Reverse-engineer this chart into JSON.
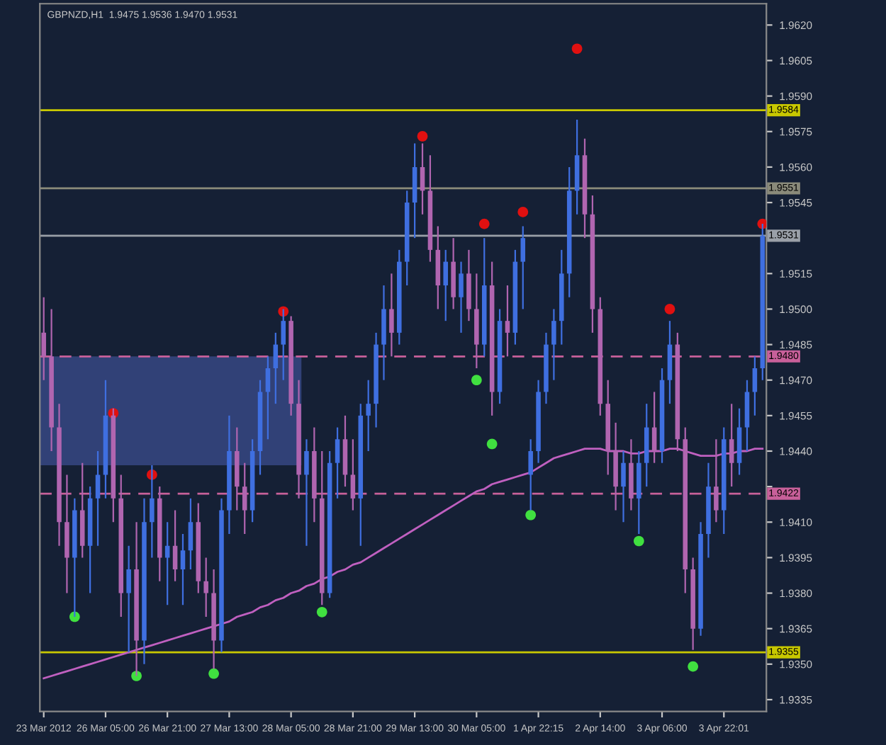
{
  "chart_data": {
    "type": "candlestick",
    "title": "GBPNZD,H1  1.9475 1.9536 1.9470 1.9531",
    "categories": [
      "23 Mar 2012",
      null,
      null,
      null,
      null,
      null,
      null,
      null,
      "26 Mar 05:00",
      null,
      null,
      null,
      null,
      null,
      null,
      null,
      "26 Mar 21:00",
      null,
      null,
      null,
      null,
      null,
      null,
      null,
      "27 Mar 13:00",
      null,
      null,
      null,
      null,
      null,
      null,
      null,
      "28 Mar 05:00",
      null,
      null,
      null,
      null,
      null,
      null,
      null,
      "28 Mar 21:00",
      null,
      null,
      null,
      null,
      null,
      null,
      null,
      "29 Mar 13:00",
      null,
      null,
      null,
      null,
      null,
      null,
      null,
      "30 Mar 05:00",
      null,
      null,
      null,
      null,
      null,
      null,
      null,
      "1 Apr 22:15",
      null,
      null,
      null,
      null,
      null,
      null,
      null,
      "2 Apr 14:00",
      null,
      null,
      null,
      null,
      null,
      null,
      null,
      "3 Apr 06:00",
      null,
      null,
      null,
      null,
      null,
      null,
      null,
      "3 Apr 22:01",
      null,
      null,
      null,
      null,
      null
    ],
    "ohlc": [
      [
        1.949,
        1.9505,
        1.947,
        1.948
      ],
      [
        1.948,
        1.95,
        1.944,
        1.945
      ],
      [
        1.945,
        1.946,
        1.94,
        1.941
      ],
      [
        1.941,
        1.943,
        1.938,
        1.9395
      ],
      [
        1.9395,
        1.942,
        1.937,
        1.9415
      ],
      [
        1.9415,
        1.9435,
        1.9395,
        1.94
      ],
      [
        1.94,
        1.9425,
        1.938,
        1.942
      ],
      [
        1.942,
        1.944,
        1.94,
        1.943
      ],
      [
        1.943,
        1.947,
        1.942,
        1.9455
      ],
      [
        1.9455,
        1.9458,
        1.941,
        1.942
      ],
      [
        1.942,
        1.943,
        1.937,
        1.938
      ],
      [
        1.938,
        1.94,
        1.9355,
        1.939
      ],
      [
        1.939,
        1.941,
        1.9345,
        1.936
      ],
      [
        1.936,
        1.942,
        1.935,
        1.941
      ],
      [
        1.941,
        1.9434,
        1.9395,
        1.942
      ],
      [
        1.942,
        1.9425,
        1.9385,
        1.9395
      ],
      [
        1.9395,
        1.941,
        1.9375,
        1.94
      ],
      [
        1.94,
        1.9415,
        1.9385,
        1.939
      ],
      [
        1.939,
        1.9405,
        1.9375,
        1.9398
      ],
      [
        1.9398,
        1.942,
        1.939,
        1.941
      ],
      [
        1.941,
        1.9418,
        1.938,
        1.9385
      ],
      [
        1.9385,
        1.9395,
        1.937,
        1.938
      ],
      [
        1.938,
        1.939,
        1.9348,
        1.936
      ],
      [
        1.936,
        1.942,
        1.9355,
        1.9415
      ],
      [
        1.9415,
        1.9455,
        1.9405,
        1.944
      ],
      [
        1.944,
        1.945,
        1.9415,
        1.9425
      ],
      [
        1.9425,
        1.9435,
        1.9405,
        1.9415
      ],
      [
        1.9415,
        1.9445,
        1.941,
        1.944
      ],
      [
        1.944,
        1.947,
        1.943,
        1.9465
      ],
      [
        1.9465,
        1.948,
        1.9445,
        1.9475
      ],
      [
        1.9475,
        1.949,
        1.946,
        1.9485
      ],
      [
        1.9485,
        1.95,
        1.947,
        1.9495
      ],
      [
        1.9495,
        1.9497,
        1.9455,
        1.946
      ],
      [
        1.946,
        1.947,
        1.942,
        1.943
      ],
      [
        1.943,
        1.9445,
        1.94,
        1.944
      ],
      [
        1.944,
        1.945,
        1.941,
        1.942
      ],
      [
        1.942,
        1.944,
        1.9375,
        1.938
      ],
      [
        1.938,
        1.944,
        1.9378,
        1.9435
      ],
      [
        1.9435,
        1.945,
        1.942,
        1.9445
      ],
      [
        1.9445,
        1.9455,
        1.9425,
        1.943
      ],
      [
        1.943,
        1.9445,
        1.9415,
        1.942
      ],
      [
        1.942,
        1.946,
        1.94,
        1.9455
      ],
      [
        1.9455,
        1.947,
        1.944,
        1.946
      ],
      [
        1.946,
        1.949,
        1.945,
        1.9485
      ],
      [
        1.9485,
        1.951,
        1.947,
        1.95
      ],
      [
        1.95,
        1.9515,
        1.948,
        1.949
      ],
      [
        1.949,
        1.9525,
        1.9485,
        1.952
      ],
      [
        1.952,
        1.955,
        1.951,
        1.9545
      ],
      [
        1.9545,
        1.957,
        1.953,
        1.956
      ],
      [
        1.956,
        1.957,
        1.954,
        1.955
      ],
      [
        1.955,
        1.9565,
        1.952,
        1.9525
      ],
      [
        1.9525,
        1.9535,
        1.95,
        1.951
      ],
      [
        1.951,
        1.9525,
        1.9495,
        1.952
      ],
      [
        1.952,
        1.953,
        1.95,
        1.9505
      ],
      [
        1.9505,
        1.952,
        1.949,
        1.9515
      ],
      [
        1.9515,
        1.9525,
        1.9495,
        1.95
      ],
      [
        1.95,
        1.9515,
        1.9475,
        1.9485
      ],
      [
        1.9485,
        1.953,
        1.948,
        1.951
      ],
      [
        1.951,
        1.952,
        1.9455,
        1.9465
      ],
      [
        1.9465,
        1.95,
        1.946,
        1.9495
      ],
      [
        1.9495,
        1.951,
        1.948,
        1.949
      ],
      [
        1.949,
        1.9525,
        1.9485,
        1.952
      ],
      [
        1.952,
        1.9535,
        1.95,
        1.953
      ],
      [
        1.943,
        1.9445,
        1.9415,
        1.944
      ],
      [
        1.944,
        1.947,
        1.9435,
        1.9465
      ],
      [
        1.9465,
        1.949,
        1.946,
        1.9485
      ],
      [
        1.9485,
        1.95,
        1.947,
        1.9495
      ],
      [
        1.9495,
        1.9525,
        1.9485,
        1.9515
      ],
      [
        1.9515,
        1.956,
        1.9505,
        1.955
      ],
      [
        1.955,
        1.958,
        1.954,
        1.9565
      ],
      [
        1.9565,
        1.9572,
        1.953,
        1.954
      ],
      [
        1.954,
        1.9548,
        1.949,
        1.95
      ],
      [
        1.95,
        1.9505,
        1.9455,
        1.946
      ],
      [
        1.946,
        1.947,
        1.943,
        1.944
      ],
      [
        1.944,
        1.9452,
        1.9415,
        1.9425
      ],
      [
        1.9425,
        1.944,
        1.941,
        1.9435
      ],
      [
        1.9435,
        1.9445,
        1.9415,
        1.942
      ],
      [
        1.942,
        1.944,
        1.9405,
        1.9435
      ],
      [
        1.9435,
        1.946,
        1.9425,
        1.945
      ],
      [
        1.945,
        1.9465,
        1.9435,
        1.944
      ],
      [
        1.944,
        1.9475,
        1.9435,
        1.947
      ],
      [
        1.947,
        1.9495,
        1.946,
        1.9485
      ],
      [
        1.9485,
        1.949,
        1.944,
        1.9445
      ],
      [
        1.9445,
        1.945,
        1.938,
        1.939
      ],
      [
        1.939,
        1.9395,
        1.9356,
        1.9365
      ],
      [
        1.9365,
        1.941,
        1.9362,
        1.9405
      ],
      [
        1.9405,
        1.9435,
        1.9395,
        1.9425
      ],
      [
        1.9425,
        1.9445,
        1.941,
        1.9415
      ],
      [
        1.9415,
        1.945,
        1.9405,
        1.9445
      ],
      [
        1.9445,
        1.946,
        1.9425,
        1.9435
      ],
      [
        1.9435,
        1.9458,
        1.943,
        1.945
      ],
      [
        1.945,
        1.947,
        1.944,
        1.9465
      ],
      [
        1.9465,
        1.948,
        1.9455,
        1.9475
      ],
      [
        1.9475,
        1.9536,
        1.947,
        1.9531
      ]
    ],
    "colors": [
      "#b065b0",
      "#b065b0",
      "#b065b0",
      "#b065b0",
      "#3f6fe0",
      "#b065b0",
      "#3f6fe0",
      "#3f6fe0",
      "#3f6fe0",
      "#b065b0",
      "#b065b0",
      "#3f6fe0",
      "#b065b0",
      "#3f6fe0",
      "#3f6fe0",
      "#b065b0",
      "#3f6fe0",
      "#b065b0",
      "#3f6fe0",
      "#3f6fe0",
      "#b065b0",
      "#b065b0",
      "#b065b0",
      "#3f6fe0",
      "#3f6fe0",
      "#b065b0",
      "#b065b0",
      "#3f6fe0",
      "#3f6fe0",
      "#3f6fe0",
      "#3f6fe0",
      "#3f6fe0",
      "#b065b0",
      "#b065b0",
      "#3f6fe0",
      "#b065b0",
      "#b065b0",
      "#3f6fe0",
      "#3f6fe0",
      "#b065b0",
      "#b065b0",
      "#3f6fe0",
      "#3f6fe0",
      "#3f6fe0",
      "#3f6fe0",
      "#b065b0",
      "#3f6fe0",
      "#3f6fe0",
      "#3f6fe0",
      "#b065b0",
      "#b065b0",
      "#b065b0",
      "#3f6fe0",
      "#b065b0",
      "#3f6fe0",
      "#b065b0",
      "#b065b0",
      "#3f6fe0",
      "#b065b0",
      "#3f6fe0",
      "#b065b0",
      "#3f6fe0",
      "#3f6fe0",
      "#3f6fe0",
      "#3f6fe0",
      "#3f6fe0",
      "#3f6fe0",
      "#3f6fe0",
      "#3f6fe0",
      "#3f6fe0",
      "#b065b0",
      "#b065b0",
      "#b065b0",
      "#b065b0",
      "#b065b0",
      "#3f6fe0",
      "#b065b0",
      "#3f6fe0",
      "#3f6fe0",
      "#b065b0",
      "#3f6fe0",
      "#3f6fe0",
      "#b065b0",
      "#b065b0",
      "#b065b0",
      "#3f6fe0",
      "#3f6fe0",
      "#b065b0",
      "#3f6fe0",
      "#b065b0",
      "#3f6fe0",
      "#3f6fe0",
      "#3f6fe0",
      "#3f6fe0"
    ],
    "series": [
      {
        "type": "line",
        "color": "#c060c0",
        "values": [
          1.9344,
          1.9345,
          1.9346,
          1.9347,
          1.9348,
          1.9349,
          1.935,
          1.9351,
          1.9352,
          1.9353,
          1.9354,
          1.9355,
          1.9356,
          1.9357,
          1.9358,
          1.9359,
          1.936,
          1.9361,
          1.9362,
          1.9363,
          1.9364,
          1.9365,
          1.9366,
          1.9367,
          1.9368,
          1.937,
          1.9371,
          1.9372,
          1.9374,
          1.9375,
          1.9377,
          1.9378,
          1.938,
          1.9381,
          1.9383,
          1.9384,
          1.9386,
          1.9387,
          1.9389,
          1.939,
          1.9392,
          1.9393,
          1.9395,
          1.9397,
          1.9399,
          1.9401,
          1.9403,
          1.9405,
          1.9407,
          1.9409,
          1.9411,
          1.9413,
          1.9415,
          1.9417,
          1.9419,
          1.9421,
          1.9423,
          1.9424,
          1.9426,
          1.9427,
          1.9428,
          1.9429,
          1.943,
          1.9431,
          1.9433,
          1.9435,
          1.9437,
          1.9438,
          1.9439,
          1.944,
          1.9441,
          1.9441,
          1.9441,
          1.944,
          1.944,
          1.944,
          1.9439,
          1.9439,
          1.944,
          1.944,
          1.944,
          1.9441,
          1.9441,
          1.944,
          1.9439,
          1.9438,
          1.9438,
          1.9438,
          1.9439,
          1.9439,
          1.944,
          1.944,
          1.9441,
          1.9441
        ]
      },
      {
        "type": "scatter",
        "color": "#e01010",
        "values": [
          null,
          null,
          null,
          null,
          null,
          null,
          null,
          null,
          null,
          1.9456,
          null,
          null,
          null,
          null,
          1.943,
          null,
          null,
          null,
          null,
          null,
          null,
          null,
          null,
          null,
          null,
          null,
          null,
          null,
          null,
          null,
          null,
          1.9499,
          null,
          null,
          null,
          null,
          null,
          null,
          null,
          null,
          null,
          null,
          null,
          null,
          null,
          null,
          null,
          null,
          null,
          1.9573,
          null,
          null,
          null,
          null,
          null,
          null,
          null,
          1.9536,
          null,
          null,
          null,
          null,
          1.9541,
          null,
          null,
          null,
          null,
          null,
          null,
          1.961,
          null,
          null,
          null,
          null,
          null,
          null,
          null,
          null,
          null,
          null,
          null,
          1.95,
          null,
          null,
          null,
          null,
          null,
          null,
          null,
          null,
          null,
          null,
          null,
          1.9536
        ]
      },
      {
        "type": "scatter",
        "color": "#40e040",
        "values": [
          null,
          null,
          null,
          null,
          1.937,
          null,
          null,
          null,
          null,
          null,
          null,
          null,
          1.9345,
          null,
          null,
          null,
          null,
          null,
          null,
          null,
          null,
          null,
          1.9346,
          null,
          null,
          null,
          null,
          null,
          null,
          null,
          null,
          null,
          null,
          null,
          null,
          null,
          1.9372,
          null,
          null,
          null,
          null,
          null,
          null,
          null,
          null,
          null,
          null,
          null,
          null,
          null,
          null,
          null,
          null,
          null,
          null,
          null,
          1.947,
          null,
          1.9443,
          null,
          null,
          null,
          null,
          1.9413,
          null,
          null,
          null,
          null,
          null,
          null,
          null,
          null,
          null,
          null,
          null,
          null,
          null,
          1.9402,
          null,
          null,
          null,
          null,
          null,
          null,
          1.9349,
          null,
          null,
          null,
          null,
          null,
          null,
          null,
          null,
          null
        ]
      }
    ],
    "ylim": [
      1.933,
      1.9629
    ],
    "yticks": [
      1.9335,
      {
        "value": 1.935,
        "label": "1.9350"
      },
      1.9365,
      {
        "value": 1.938,
        "label": "1.9380"
      },
      1.9395,
      {
        "value": 1.941,
        "label": "1.9410"
      },
      {
        "value": 1.9425,
        "label": null
      },
      {
        "value": 1.944,
        "label": "1.9440"
      },
      1.9455,
      {
        "value": 1.947,
        "label": "1.9470"
      },
      1.9485,
      {
        "value": 1.95,
        "label": "1.9500"
      },
      1.9515,
      1.9545,
      {
        "value": 1.956,
        "label": "1.9560"
      },
      1.9575,
      {
        "value": 1.959,
        "label": "1.9590"
      },
      1.9605,
      {
        "value": 1.962,
        "label": "1.9620"
      }
    ],
    "ref_lines": [
      {
        "axis": "y",
        "value": 1.9584,
        "label": "1.9584",
        "color": "#c8c800",
        "line_style": "solid"
      },
      {
        "axis": "y",
        "value": 1.9551,
        "label": "1.9551",
        "color": "#8a8a7a",
        "line_style": "solid"
      },
      {
        "axis": "y",
        "value": 1.9531,
        "label": "1.9531",
        "color": "#9aa0a8",
        "line_style": "solid"
      },
      {
        "axis": "y",
        "value": 1.948,
        "label": "1.9480",
        "color": "#c8609a",
        "line_style": "dashed"
      },
      {
        "axis": "y",
        "value": 1.9422,
        "label": "1.9422",
        "color": "#c8609a",
        "line_style": "dashed"
      },
      {
        "axis": "y",
        "value": 1.9355,
        "label": "1.9355",
        "color": "#c8c800",
        "line_style": "solid"
      }
    ],
    "bands": [
      {
        "axis": "y",
        "from": 1.9434,
        "to": 1.948,
        "color": "#34457e"
      }
    ],
    "grid": false
  }
}
